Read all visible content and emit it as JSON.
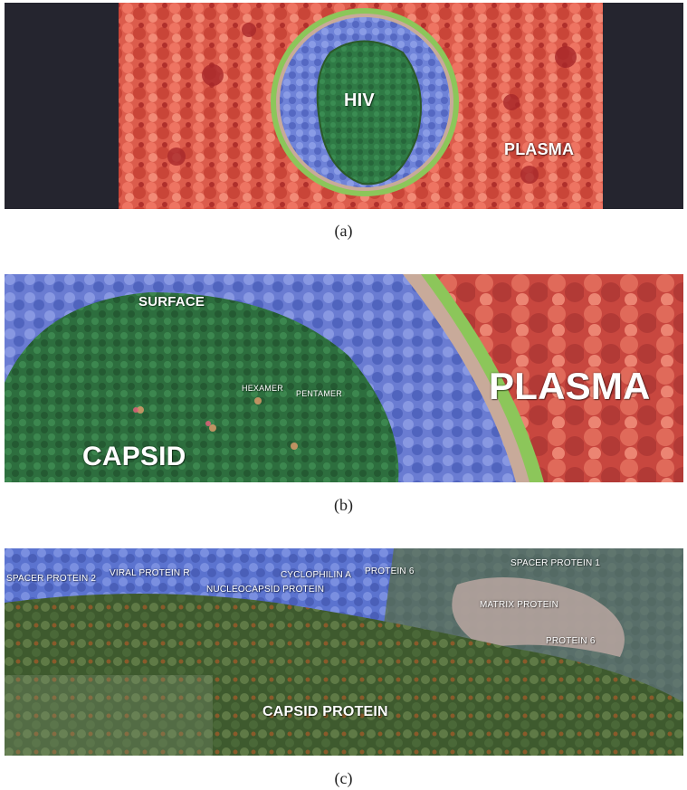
{
  "panels": {
    "a": {
      "caption": "(a)",
      "labels": {
        "hiv": "HIV",
        "plasma": "PLASMA"
      }
    },
    "b": {
      "caption": "(b)",
      "labels": {
        "surface": "SURFACE",
        "hexamer": "HEXAMER",
        "pentamer": "PENTAMER",
        "capsid": "CAPSID",
        "plasma": "PLASMA"
      }
    },
    "c": {
      "caption": "(c)",
      "labels": {
        "spacer_protein_2": "SPACER PROTEIN 2",
        "viral_protein_r": "VIRAL PROTEIN R",
        "nucleocapsid_protein": "NUCLEOCAPSID PROTEIN",
        "cyclophilin_a": "CYCLOPHILIN A",
        "protein_6_top": "PROTEIN 6",
        "spacer_protein_1": "SPACER PROTEIN 1",
        "matrix_protein": "MATRIX PROTEIN",
        "protein_6_lower": "PROTEIN 6",
        "capsid_protein": "CAPSID PROTEIN"
      }
    }
  },
  "colors": {
    "plasma": "#e0604f",
    "plasma_dark": "#a8282a",
    "background": "#25252f",
    "matrix_blue": "#6c7fd6",
    "membrane_green": "#8cc65a",
    "capsid_green": "#2f7a45",
    "capsid_dark": "#2b5a2a",
    "lipid_tan": "#c8aa9a"
  }
}
